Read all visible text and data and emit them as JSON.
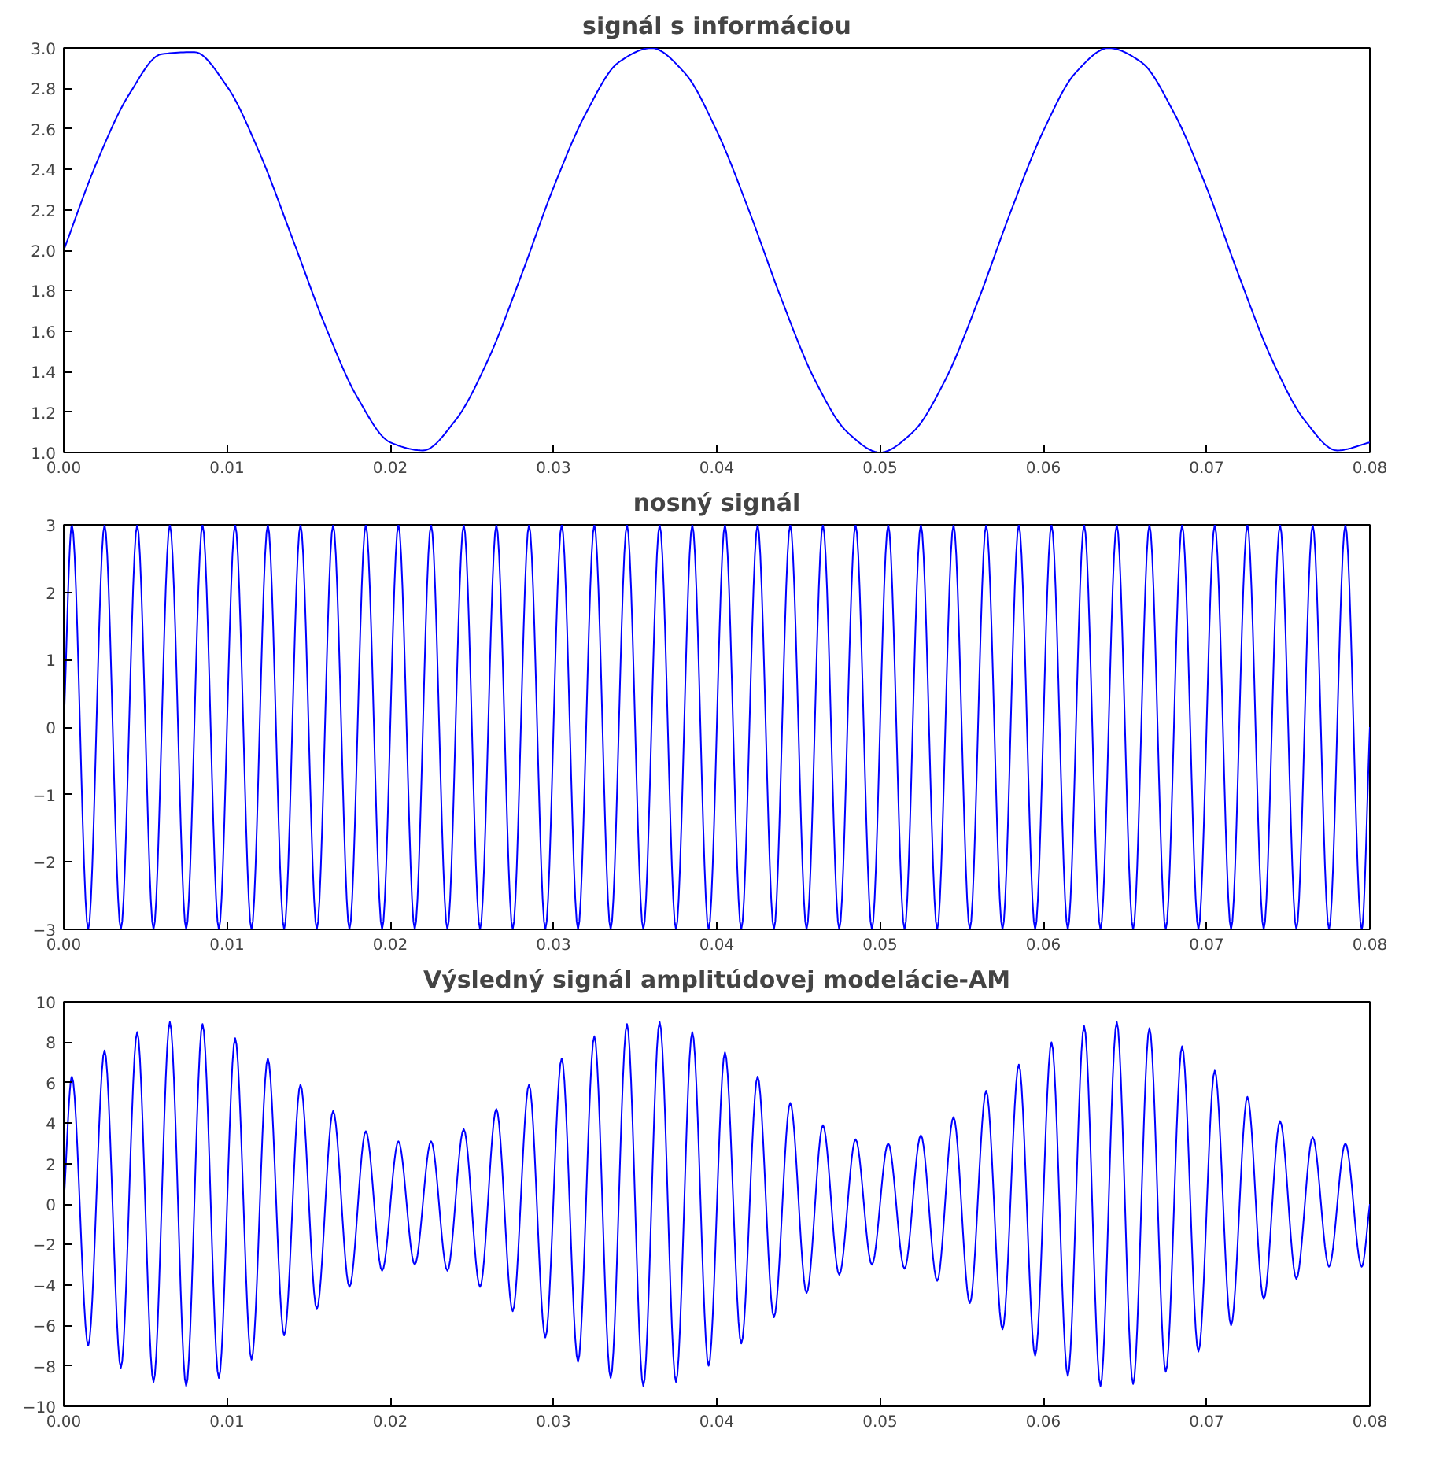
{
  "chart_data": [
    {
      "type": "line",
      "title": "signál s informáciou",
      "color": "#0000ff",
      "x": [
        0,
        0.002,
        0.004,
        0.006,
        0.008,
        0.01,
        0.012,
        0.014,
        0.016,
        0.018,
        0.02,
        0.022,
        0.024,
        0.026,
        0.028,
        0.03,
        0.032,
        0.034,
        0.036,
        0.038,
        0.04,
        0.042,
        0.044,
        0.046,
        0.048,
        0.05,
        0.052,
        0.054,
        0.056,
        0.058,
        0.06,
        0.062,
        0.064,
        0.066,
        0.068,
        0.07,
        0.072,
        0.074,
        0.076,
        0.078,
        0.08
      ],
      "values": [
        2.0,
        2.43,
        2.77,
        2.97,
        2.98,
        2.81,
        2.48,
        2.06,
        1.63,
        1.27,
        1.05,
        1.01,
        1.16,
        1.46,
        1.87,
        2.31,
        2.68,
        2.93,
        3.0,
        2.88,
        2.59,
        2.19,
        1.75,
        1.36,
        1.1,
        1.0,
        1.1,
        1.36,
        1.75,
        2.19,
        2.59,
        2.88,
        3.0,
        2.93,
        2.68,
        2.31,
        1.87,
        1.46,
        1.16,
        1.01,
        1.05
      ],
      "xlim": [
        0,
        0.08
      ],
      "ylim": [
        1,
        3
      ],
      "xticks": [
        {
          "value": 0,
          "label": "0.00"
        },
        {
          "value": 0.01,
          "label": "0.01"
        },
        {
          "value": 0.02,
          "label": "0.02"
        },
        {
          "value": 0.03,
          "label": "0.03"
        },
        {
          "value": 0.04,
          "label": "0.04"
        },
        {
          "value": 0.05,
          "label": "0.05"
        },
        {
          "value": 0.06,
          "label": "0.06"
        },
        {
          "value": 0.07,
          "label": "0.07"
        },
        {
          "value": 0.08,
          "label": "0.08"
        }
      ],
      "yticks": [
        {
          "value": 1,
          "label": "1.0"
        },
        {
          "value": 1.2,
          "label": "1.2"
        },
        {
          "value": 1.4,
          "label": "1.4"
        },
        {
          "value": 1.6,
          "label": "1.6"
        },
        {
          "value": 1.8,
          "label": "1.8"
        },
        {
          "value": 2,
          "label": "2.0"
        },
        {
          "value": 2.2,
          "label": "2.2"
        },
        {
          "value": 2.4,
          "label": "2.4"
        },
        {
          "value": 2.6,
          "label": "2.6"
        },
        {
          "value": 2.8,
          "label": "2.8"
        },
        {
          "value": 3,
          "label": "3.0"
        }
      ]
    },
    {
      "type": "line",
      "title": "nosný signál",
      "color": "#0000ff",
      "x": [
        0,
        0.0005,
        0.0015,
        0.0025,
        0.0035,
        0.0045,
        0.0055,
        0.0065,
        0.0075,
        0.0085,
        0.0095,
        0.0105,
        0.0115,
        0.0125,
        0.0135,
        0.0145,
        0.0155,
        0.0165,
        0.0175,
        0.0185,
        0.0195,
        0.0205,
        0.0215,
        0.0225,
        0.0235,
        0.0245,
        0.0255,
        0.0265,
        0.0275,
        0.0285,
        0.0295,
        0.0305,
        0.0315,
        0.0325,
        0.0335,
        0.0345,
        0.0355,
        0.0365,
        0.0375,
        0.0385,
        0.0395,
        0.0405,
        0.0415,
        0.0425,
        0.0435,
        0.0445,
        0.0455,
        0.0465,
        0.0475,
        0.0485,
        0.0495,
        0.0505,
        0.0515,
        0.0525,
        0.0535,
        0.0545,
        0.0555,
        0.0565,
        0.0575,
        0.0585,
        0.0595,
        0.0605,
        0.0615,
        0.0625,
        0.0635,
        0.0645,
        0.0655,
        0.0665,
        0.0675,
        0.0685,
        0.0695,
        0.0705,
        0.0715,
        0.0725,
        0.0735,
        0.0745,
        0.0755,
        0.0765,
        0.0775,
        0.0785,
        0.0795,
        0.08
      ],
      "values": [
        0,
        3,
        -3,
        3,
        -3,
        3,
        -3,
        3,
        -3,
        3,
        -3,
        3,
        -3,
        3,
        -3,
        3,
        -3,
        3,
        -3,
        3,
        -3,
        3,
        -3,
        3,
        -3,
        3,
        -3,
        3,
        -3,
        3,
        -3,
        3,
        -3,
        3,
        -3,
        3,
        -3,
        3,
        -3,
        3,
        -3,
        3,
        -3,
        3,
        -3,
        3,
        -3,
        3,
        -3,
        3,
        -3,
        3,
        -3,
        3,
        -3,
        3,
        -3,
        3,
        -3,
        3,
        -3,
        3,
        -3,
        3,
        -3,
        3,
        -3,
        3,
        -3,
        3,
        -3,
        3,
        -3,
        3,
        -3,
        3,
        -3,
        3,
        -3,
        3,
        -3,
        0
      ],
      "xlim": [
        0,
        0.08
      ],
      "ylim": [
        -3,
        3
      ],
      "xticks": [
        {
          "value": 0,
          "label": "0.00"
        },
        {
          "value": 0.01,
          "label": "0.01"
        },
        {
          "value": 0.02,
          "label": "0.02"
        },
        {
          "value": 0.03,
          "label": "0.03"
        },
        {
          "value": 0.04,
          "label": "0.04"
        },
        {
          "value": 0.05,
          "label": "0.05"
        },
        {
          "value": 0.06,
          "label": "0.06"
        },
        {
          "value": 0.07,
          "label": "0.07"
        },
        {
          "value": 0.08,
          "label": "0.08"
        }
      ],
      "yticks": [
        -3,
        -2,
        -1,
        0,
        1,
        2,
        3
      ]
    },
    {
      "type": "line",
      "title": "Výsledný signál amplitúdovej modelácie-AM",
      "color": "#0000ff",
      "x": [
        0,
        0.0005,
        0.0015,
        0.0025,
        0.0035,
        0.0045,
        0.0055,
        0.0065,
        0.0075,
        0.0085,
        0.0095,
        0.0105,
        0.0115,
        0.0125,
        0.0135,
        0.0145,
        0.0155,
        0.0165,
        0.0175,
        0.0185,
        0.0195,
        0.0205,
        0.0215,
        0.0225,
        0.0235,
        0.0245,
        0.0255,
        0.0265,
        0.0275,
        0.0285,
        0.0295,
        0.0305,
        0.0315,
        0.0325,
        0.0335,
        0.0345,
        0.0355,
        0.0365,
        0.0375,
        0.0385,
        0.0395,
        0.0405,
        0.0415,
        0.0425,
        0.0435,
        0.0445,
        0.0455,
        0.0465,
        0.0475,
        0.0485,
        0.0495,
        0.0505,
        0.0515,
        0.0525,
        0.0535,
        0.0545,
        0.0555,
        0.0565,
        0.0575,
        0.0585,
        0.0595,
        0.0605,
        0.0615,
        0.0625,
        0.0635,
        0.0645,
        0.0655,
        0.0665,
        0.0675,
        0.0685,
        0.0695,
        0.0705,
        0.0715,
        0.0725,
        0.0735,
        0.0745,
        0.0755,
        0.0765,
        0.0775,
        0.0785,
        0.0795,
        0.08
      ],
      "values": [
        0,
        6.3,
        -7.0,
        7.6,
        -8.1,
        8.5,
        -8.8,
        9.0,
        -9.0,
        8.9,
        -8.6,
        8.2,
        -7.7,
        7.2,
        -6.5,
        5.9,
        -5.2,
        4.6,
        -4.1,
        3.6,
        -3.3,
        3.1,
        -3.0,
        3.1,
        -3.3,
        3.7,
        -4.1,
        4.7,
        -5.3,
        5.9,
        -6.6,
        7.2,
        -7.8,
        8.3,
        -8.6,
        8.9,
        -9.0,
        9.0,
        -8.8,
        8.5,
        -8.0,
        7.5,
        -6.9,
        6.3,
        -5.6,
        5.0,
        -4.4,
        3.9,
        -3.5,
        3.2,
        -3.0,
        3.0,
        -3.2,
        3.4,
        -3.8,
        4.3,
        -4.9,
        5.6,
        -6.2,
        6.9,
        -7.5,
        8.0,
        -8.5,
        8.8,
        -9.0,
        9.0,
        -8.9,
        8.7,
        -8.3,
        7.8,
        -7.3,
        6.6,
        -6.0,
        5.3,
        -4.7,
        4.1,
        -3.7,
        3.3,
        -3.1,
        3.0,
        -3.1,
        0
      ],
      "xlim": [
        0,
        0.08
      ],
      "ylim": [
        -10,
        10
      ],
      "xticks": [
        {
          "value": 0,
          "label": "0.00"
        },
        {
          "value": 0.01,
          "label": "0.01"
        },
        {
          "value": 0.02,
          "label": "0.02"
        },
        {
          "value": 0.03,
          "label": "0.03"
        },
        {
          "value": 0.04,
          "label": "0.04"
        },
        {
          "value": 0.05,
          "label": "0.05"
        },
        {
          "value": 0.06,
          "label": "0.06"
        },
        {
          "value": 0.07,
          "label": "0.07"
        },
        {
          "value": 0.08,
          "label": "0.08"
        }
      ],
      "yticks": [
        -10,
        -8,
        -6,
        -4,
        -2,
        0,
        2,
        4,
        6,
        8,
        10
      ]
    }
  ]
}
